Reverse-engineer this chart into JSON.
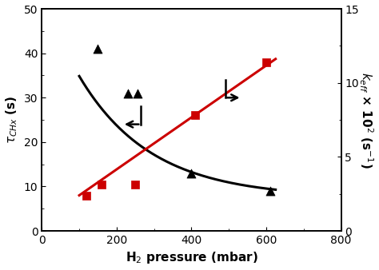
{
  "xlabel": "H$_2$ pressure (mbar)",
  "ylabel_left": "$\\tau_{CHx}$ (s)",
  "ylabel_right": "$k_{eff}$ × 10$^2$ (s$^{-1}$)",
  "xlim": [
    0,
    800
  ],
  "ylim_left": [
    0,
    50
  ],
  "ylim_right": [
    0,
    15
  ],
  "xticks": [
    0,
    200,
    400,
    600,
    800
  ],
  "yticks_left": [
    0,
    10,
    20,
    30,
    40,
    50
  ],
  "yticks_right": [
    0,
    5,
    10,
    15
  ],
  "scatter_black_x": [
    150,
    230,
    255,
    400,
    610
  ],
  "scatter_black_y": [
    41,
    31,
    31,
    13,
    9
  ],
  "scatter_red_x": [
    120,
    160,
    250,
    410,
    600
  ],
  "scatter_red_y_left": [
    8,
    10.5,
    10.5,
    26,
    38
  ],
  "black_curve_x0": 100,
  "black_curve_x1": 625,
  "black_a": 46,
  "black_b": 0.0052,
  "black_c": 7.5,
  "red_line_x0": 100,
  "red_line_x1": 625,
  "red_slope": 0.0585,
  "red_intercept": 2.15,
  "background_color": "#ffffff",
  "line_color_black": "#000000",
  "line_color_red": "#cc0000",
  "marker_black": "^",
  "marker_red": "s",
  "marker_size_black": 8,
  "marker_size_red": 7
}
